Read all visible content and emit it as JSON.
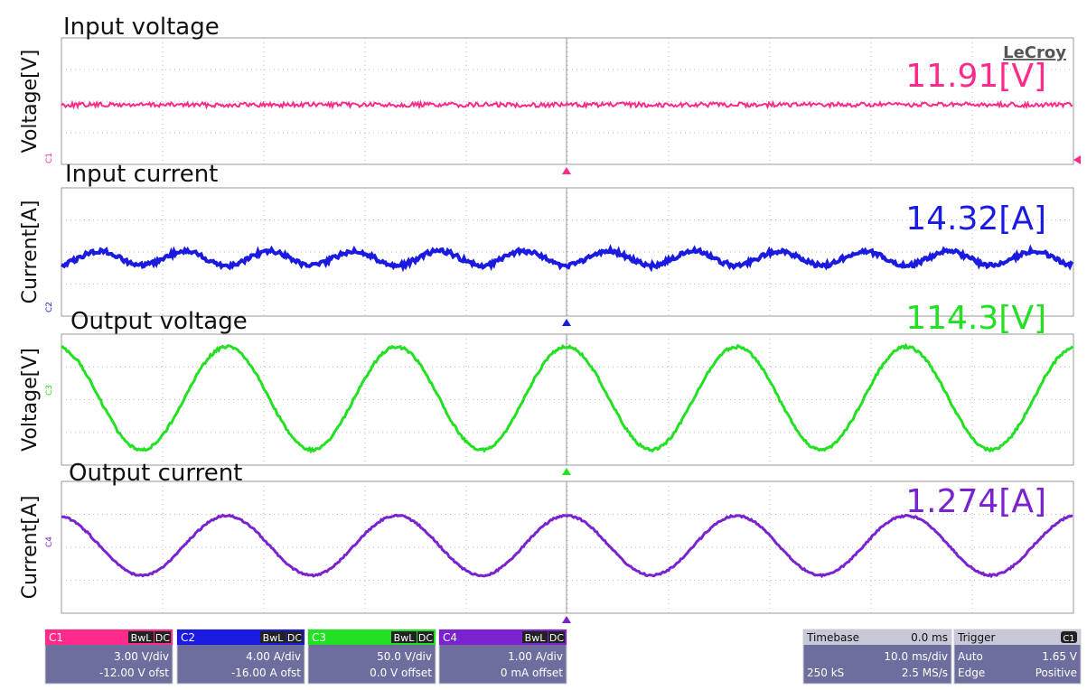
{
  "brand": "LeCroy",
  "panels": [
    {
      "title": "Input voltage",
      "y_label": "Voltage[V]",
      "reading": "11.91[V]",
      "channel": "C1"
    },
    {
      "title": "Input current",
      "y_label": "Current[A]",
      "reading": "14.32[A]",
      "channel": "C2"
    },
    {
      "title": "Output voltage",
      "y_label": "Voltage[V]",
      "reading": "114.3[V]",
      "channel": "C3"
    },
    {
      "title": "Output current",
      "y_label": "Current[A]",
      "reading": "1.274[A]",
      "channel": "C4"
    }
  ],
  "channel_boxes": [
    {
      "channel": "C1",
      "bwl": "BwL",
      "coupling": "DC",
      "scale": "3.00 V/div",
      "offset": "-12.00 V ofst"
    },
    {
      "channel": "C2",
      "bwl": "BwL",
      "coupling": "DC",
      "scale": "4.00 A/div",
      "offset": "-16.00 A ofst"
    },
    {
      "channel": "C3",
      "bwl": "BwL",
      "coupling": "DC",
      "scale": "50.0 V/div",
      "offset": "0.0 V offset"
    },
    {
      "channel": "C4",
      "bwl": "BwL",
      "coupling": "DC",
      "scale": "1.00 A/div",
      "offset": "0 mA offset"
    }
  ],
  "timebase": {
    "label": "Timebase",
    "delay": "0.0 ms",
    "scale": "10.0 ms/div",
    "samples": "250 kS",
    "rate": "2.5 MS/s"
  },
  "trigger": {
    "label": "Trigger",
    "source": "C1",
    "mode": "Auto",
    "level": "1.65 V",
    "type": "Edge",
    "slope": "Positive"
  }
}
